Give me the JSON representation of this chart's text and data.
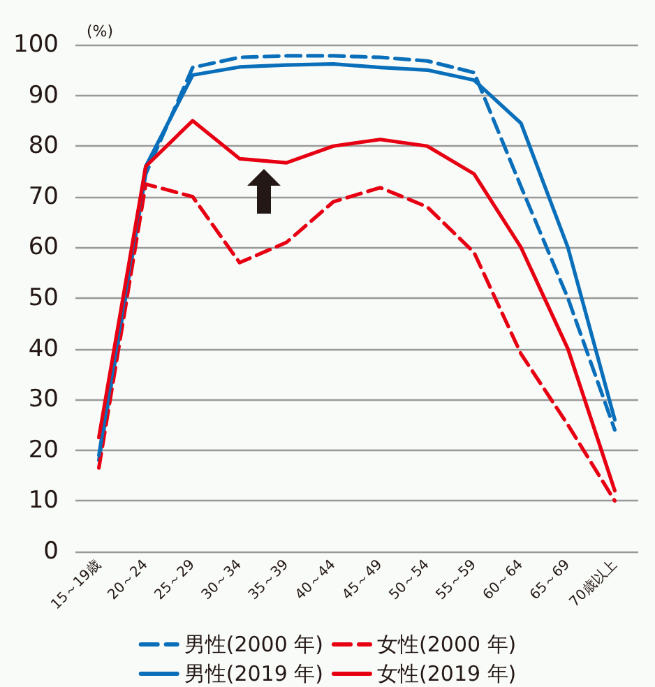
{
  "chart_data": {
    "type": "line",
    "ylabel": "(%)",
    "categories": [
      "15～19歳",
      "20～24",
      "25～29",
      "30～34",
      "35～39",
      "40～44",
      "45～49",
      "50～54",
      "55～59",
      "60～64",
      "65～69",
      "70歳以上"
    ],
    "series": [
      {
        "name": "男性(2000 年)",
        "color": "#0a6fba",
        "line_style": "dashed",
        "values": [
          18,
          74.5,
          95.5,
          97.5,
          97.8,
          97.8,
          97.5,
          96.8,
          94.5,
          72,
          50,
          24
        ]
      },
      {
        "name": "女性(2000 年)",
        "color": "#e60012",
        "line_style": "dashed",
        "values": [
          16.5,
          72.5,
          70,
          57,
          61,
          69,
          71.8,
          68,
          59,
          39,
          25,
          10
        ]
      },
      {
        "name": "男性(2019 年)",
        "color": "#0a6fba",
        "line_style": "solid",
        "values": [
          19,
          76,
          94,
          95.6,
          96,
          96.2,
          95.5,
          95,
          93,
          84.5,
          60,
          26
        ]
      },
      {
        "name": "女性(2019 年)",
        "color": "#e60012",
        "line_style": "solid",
        "values": [
          22.5,
          76,
          85,
          77.5,
          76.7,
          80,
          81.3,
          80,
          74.5,
          60,
          40,
          12
        ]
      }
    ],
    "ylim": [
      0,
      100
    ],
    "yticks": [
      0,
      10,
      20,
      30,
      40,
      50,
      60,
      70,
      80,
      90,
      100
    ],
    "grid": "y",
    "legend": "bottom",
    "marker": "none"
  }
}
